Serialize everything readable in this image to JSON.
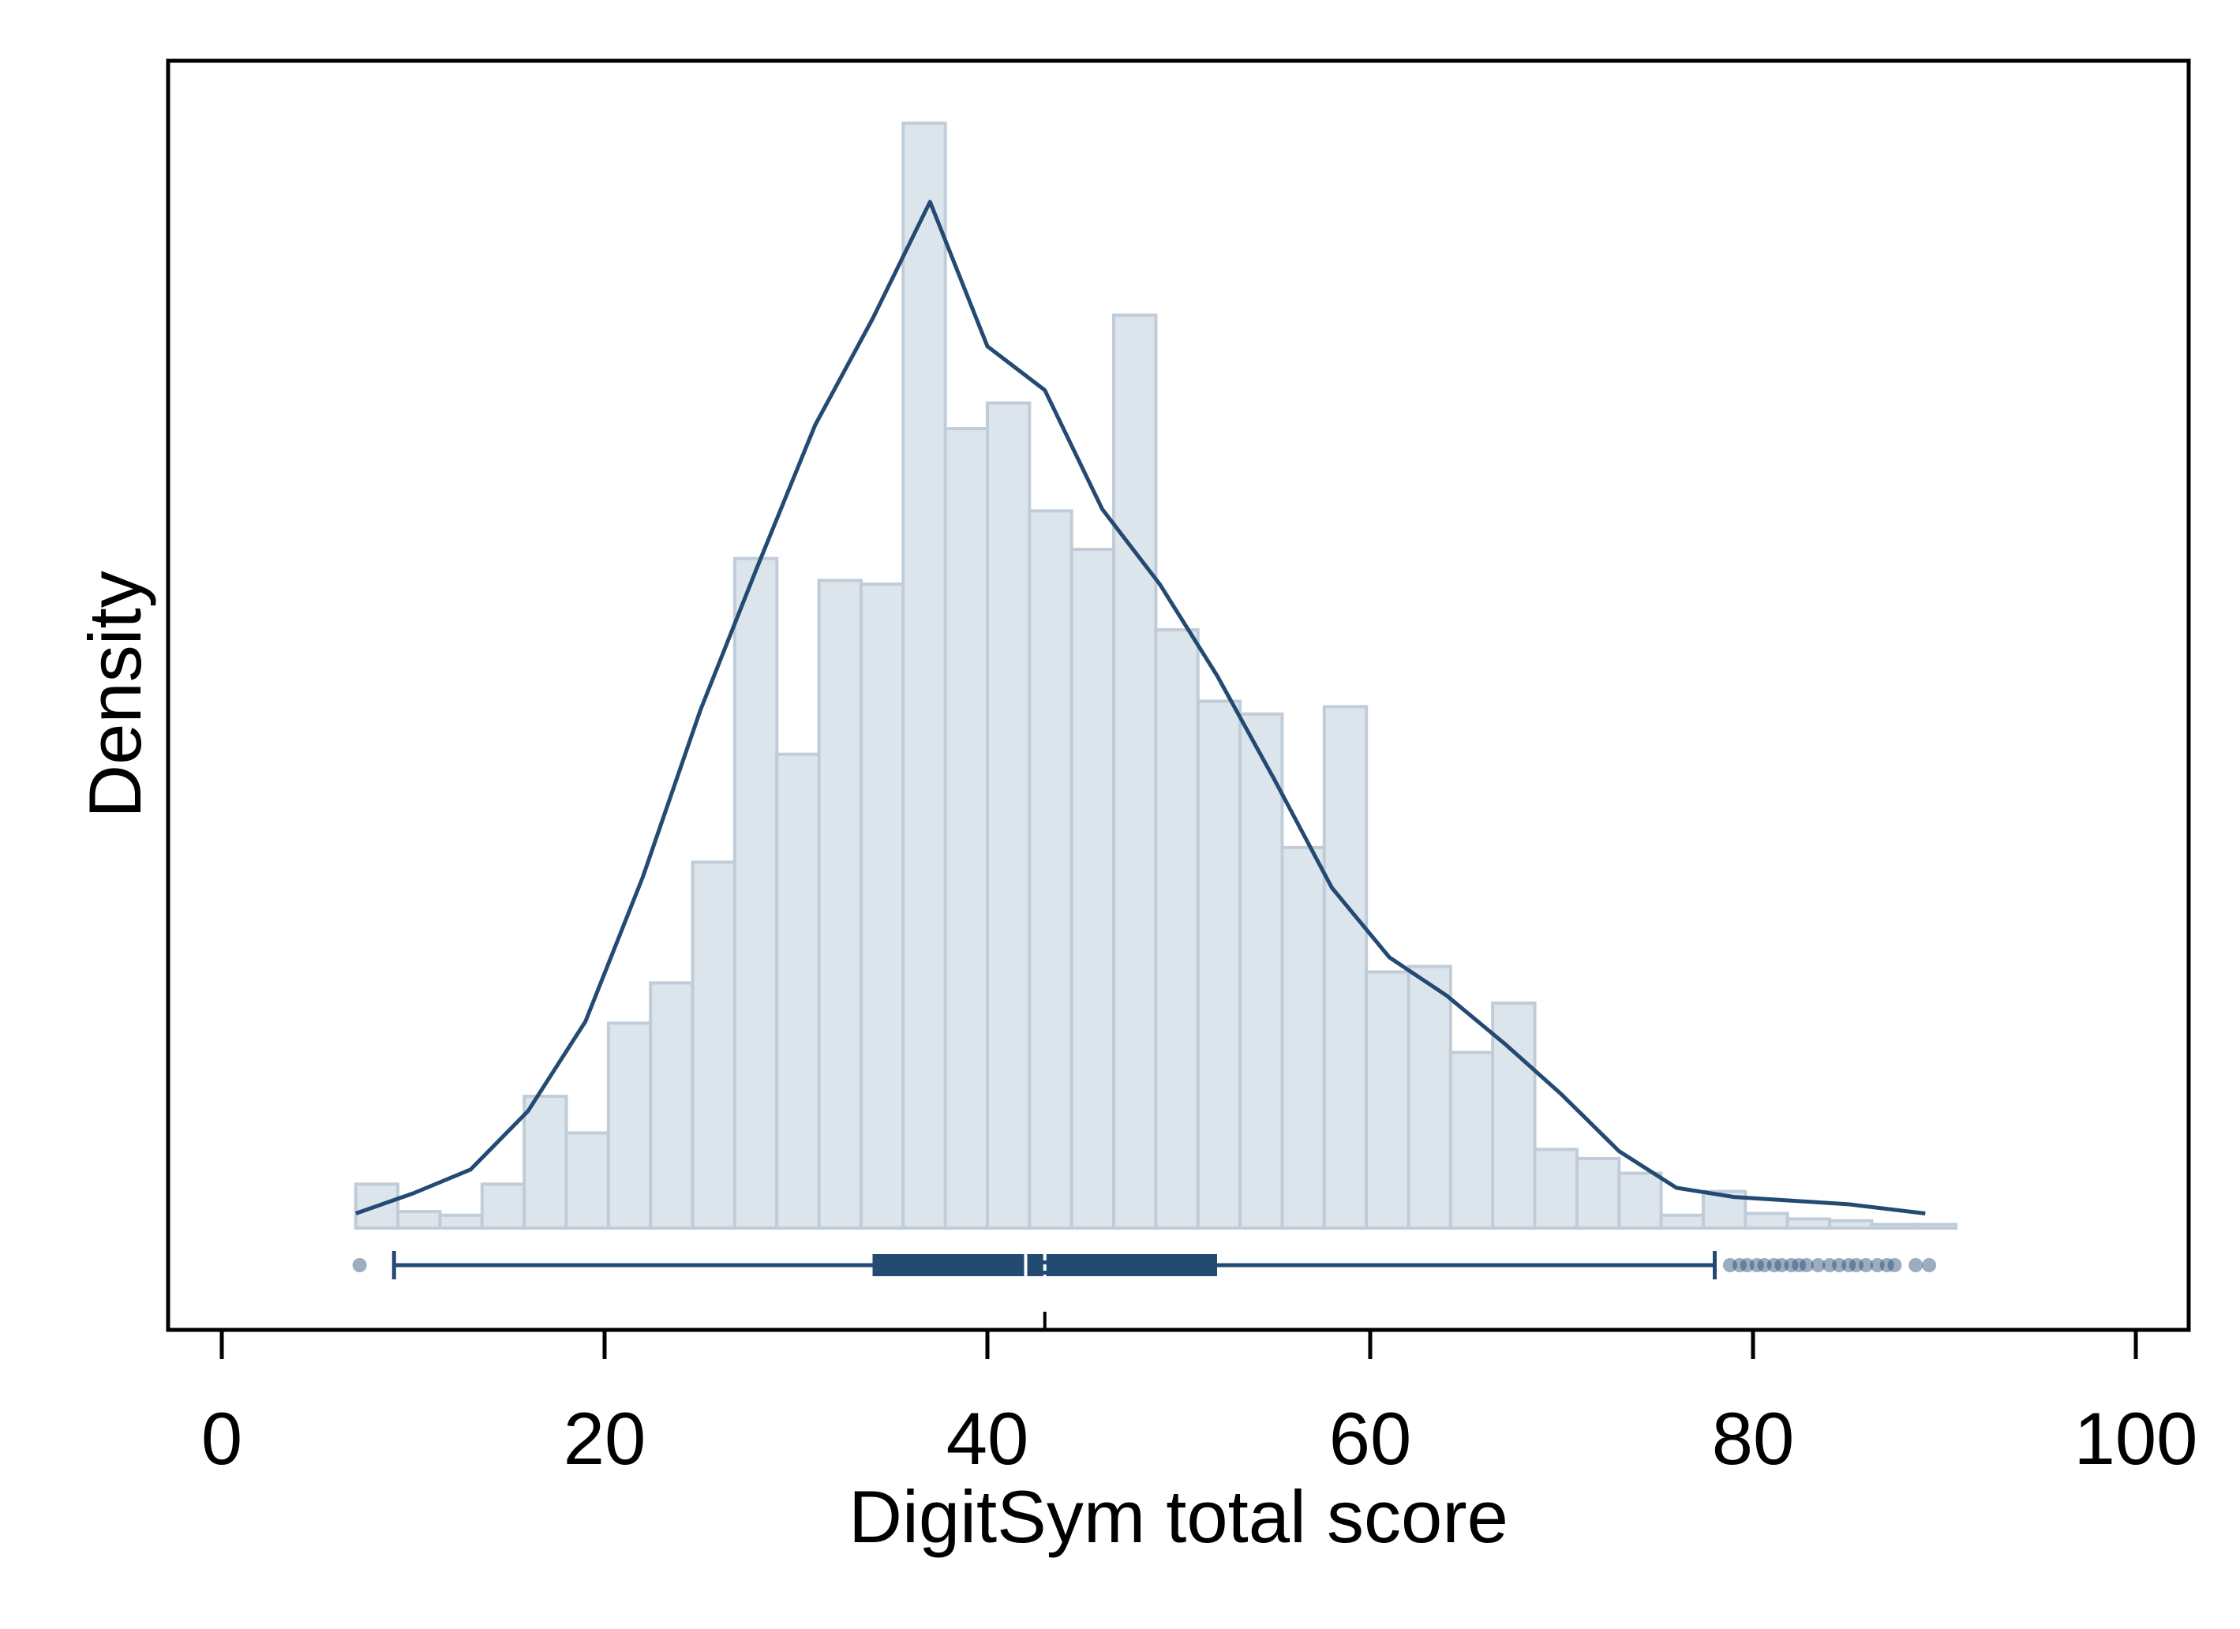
{
  "chart_data": {
    "type": "histogram",
    "xlabel": "DigitSym total score",
    "ylabel": "Density",
    "xlim": [
      -2.5,
      103
    ],
    "x_ticks": [
      0,
      20,
      40,
      60,
      80,
      100
    ],
    "x_tick_labels": [
      "0",
      "20",
      "40",
      "60",
      "80",
      "100"
    ],
    "y_ticks_shown": false,
    "grid": false,
    "histogram": {
      "bin_width": 2.2,
      "bin_edges_start": 7.0,
      "heights": [
        0.0024,
        0.0009,
        0.0007,
        0.0024,
        0.0072,
        0.0052,
        0.0112,
        0.0134,
        0.02,
        0.0366,
        0.0259,
        0.0354,
        0.0352,
        0.0604,
        0.0437,
        0.0451,
        0.0392,
        0.0371,
        0.0499,
        0.0327,
        0.0288,
        0.0281,
        0.0208,
        0.0285,
        0.014,
        0.0143,
        0.0096,
        0.0123,
        0.0043,
        0.0038,
        0.003,
        0.0007,
        0.002,
        0.0008,
        0.0005,
        0.0004,
        0.0002,
        0.0002
      ],
      "fill": "#dde5ec",
      "stroke": "#c0ccd8"
    },
    "density_curve": {
      "x": [
        7,
        10,
        13,
        16,
        19,
        22,
        25,
        28,
        31,
        34,
        37,
        40,
        43,
        46,
        49,
        52,
        55,
        58,
        61,
        64,
        67,
        70,
        73,
        76,
        79,
        82,
        85,
        89
      ],
      "y": [
        0.0008,
        0.0019,
        0.0032,
        0.0064,
        0.0113,
        0.0192,
        0.0283,
        0.0362,
        0.0439,
        0.0497,
        0.0561,
        0.0482,
        0.0458,
        0.0393,
        0.0352,
        0.0302,
        0.0245,
        0.0186,
        0.0148,
        0.0127,
        0.0101,
        0.0073,
        0.0042,
        0.0022,
        0.0017,
        0.0015,
        0.0013,
        0.0008
      ],
      "color": "#234a72"
    },
    "boxplot": {
      "whisker_low": 9,
      "q1": 34,
      "median": 42,
      "mean": 43,
      "q3": 52,
      "whisker_high": 78,
      "outliers": [
        7.2,
        78.8,
        79.3,
        79.7,
        80.2,
        80.6,
        81.1,
        81.5,
        82.0,
        82.4,
        82.8,
        83.4,
        84.0,
        84.5,
        85.0,
        85.4,
        85.9,
        86.5,
        87.0,
        87.4,
        88.5,
        89.2
      ],
      "color": "#234a72"
    }
  }
}
